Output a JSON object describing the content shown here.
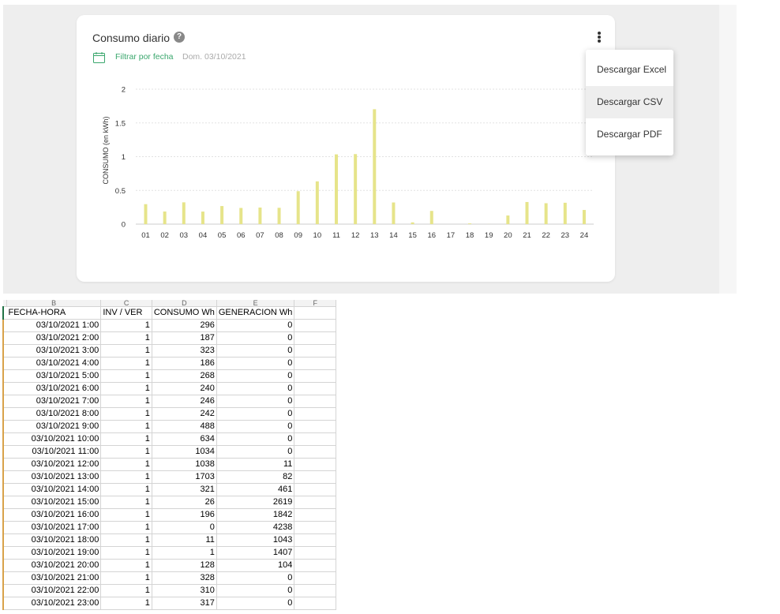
{
  "card": {
    "title": "Consumo diario",
    "help_icon": "question-circle-icon",
    "filter_icon": "calendar-icon",
    "filter_label": "Filtrar por fecha",
    "date_label": "Dom. 03/10/2021",
    "menu_icon": "kebab-menu-icon"
  },
  "menu": {
    "items": [
      "Descargar Excel",
      "Descargar CSV",
      "Descargar PDF"
    ],
    "highlighted_index": 1
  },
  "colors": {
    "bar": "#e6e48a",
    "accent": "#3aa76d",
    "grid": "#e2e2e2"
  },
  "chart_data": {
    "type": "bar",
    "ylabel": "CONSUMO (en kWh)",
    "xlabel": "",
    "ylim": [
      0,
      2
    ],
    "yticks": [
      0,
      0.5,
      1,
      1.5,
      2
    ],
    "ytick_labels": [
      "0",
      "0.5",
      "1",
      "1.5",
      "2"
    ],
    "grid": true,
    "categories": [
      "01",
      "02",
      "03",
      "04",
      "05",
      "06",
      "07",
      "08",
      "09",
      "10",
      "11",
      "12",
      "13",
      "14",
      "15",
      "16",
      "17",
      "18",
      "19",
      "20",
      "21",
      "22",
      "23",
      "24"
    ],
    "values": [
      0.296,
      0.187,
      0.323,
      0.186,
      0.268,
      0.24,
      0.246,
      0.242,
      0.488,
      0.634,
      1.034,
      1.038,
      1.703,
      0.321,
      0.026,
      0.196,
      0,
      0.011,
      0.001,
      0.128,
      0.328,
      0.31,
      0.317,
      0.21
    ]
  },
  "sheet": {
    "col_letters": [
      "B",
      "C",
      "D",
      "E",
      "F"
    ],
    "headers": [
      "FECHA-HORA",
      "INV / VER",
      "CONSUMO Wh",
      "GENERACION Wh",
      ""
    ],
    "rows": [
      [
        "03/10/2021 1:00",
        "1",
        "296",
        "0"
      ],
      [
        "03/10/2021 2:00",
        "1",
        "187",
        "0"
      ],
      [
        "03/10/2021 3:00",
        "1",
        "323",
        "0"
      ],
      [
        "03/10/2021 4:00",
        "1",
        "186",
        "0"
      ],
      [
        "03/10/2021 5:00",
        "1",
        "268",
        "0"
      ],
      [
        "03/10/2021 6:00",
        "1",
        "240",
        "0"
      ],
      [
        "03/10/2021 7:00",
        "1",
        "246",
        "0"
      ],
      [
        "03/10/2021 8:00",
        "1",
        "242",
        "0"
      ],
      [
        "03/10/2021 9:00",
        "1",
        "488",
        "0"
      ],
      [
        "03/10/2021 10:00",
        "1",
        "634",
        "0"
      ],
      [
        "03/10/2021 11:00",
        "1",
        "1034",
        "0"
      ],
      [
        "03/10/2021 12:00",
        "1",
        "1038",
        "11"
      ],
      [
        "03/10/2021 13:00",
        "1",
        "1703",
        "82"
      ],
      [
        "03/10/2021 14:00",
        "1",
        "321",
        "461"
      ],
      [
        "03/10/2021 15:00",
        "1",
        "26",
        "2619"
      ],
      [
        "03/10/2021 16:00",
        "1",
        "196",
        "1842"
      ],
      [
        "03/10/2021 17:00",
        "1",
        "0",
        "4238"
      ],
      [
        "03/10/2021 18:00",
        "1",
        "11",
        "1043"
      ],
      [
        "03/10/2021 19:00",
        "1",
        "1",
        "1407"
      ],
      [
        "03/10/2021 20:00",
        "1",
        "128",
        "104"
      ],
      [
        "03/10/2021 21:00",
        "1",
        "328",
        "0"
      ],
      [
        "03/10/2021 22:00",
        "1",
        "310",
        "0"
      ],
      [
        "03/10/2021 23:00",
        "1",
        "317",
        "0"
      ]
    ]
  }
}
